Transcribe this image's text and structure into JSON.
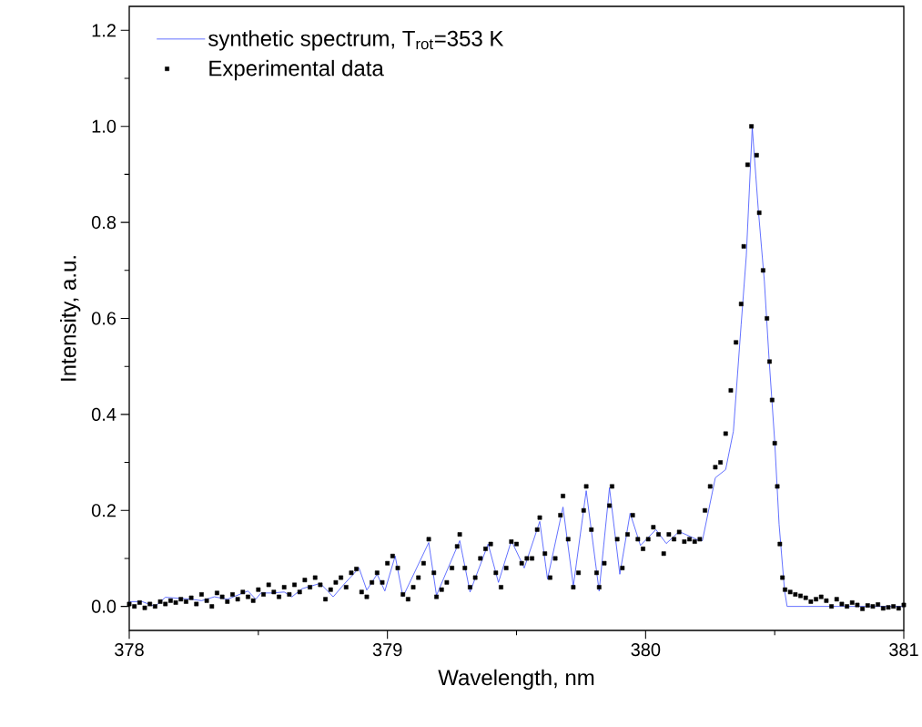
{
  "chart_data": {
    "type": "line",
    "xlabel": "Wavelength, nm",
    "ylabel": "Intensity, a.u.",
    "xlim": [
      378,
      381
    ],
    "ylim": [
      -0.05,
      1.25
    ],
    "xticks": [
      378,
      379,
      380,
      381
    ],
    "yticks": [
      {
        "value": 0,
        "label": "0.0"
      },
      {
        "value": 0.2,
        "label": "0.2"
      },
      {
        "value": 0.4,
        "label": "0.4"
      },
      {
        "value": 0.6,
        "label": "0.6"
      },
      {
        "value": 0.8,
        "label": "0.8"
      },
      {
        "value": 1.0,
        "label": "1.0"
      },
      {
        "value": 1.2,
        "label": "1.2"
      }
    ],
    "grid": false,
    "legend": "top left",
    "series": [
      {
        "name": "synthetic spectrum, T$_{rot}$=353 K",
        "color": "#3b4cff",
        "marker": "none",
        "line_style": "solid",
        "x": [
          378.0,
          378.05,
          378.1,
          378.14,
          378.24,
          378.28,
          378.33,
          378.38,
          378.46,
          378.49,
          378.51,
          378.55,
          378.6,
          378.63,
          378.67,
          378.74,
          378.79,
          378.83,
          378.89,
          378.92,
          378.96,
          378.99,
          379.03,
          379.06,
          379.16,
          379.19,
          379.28,
          379.32,
          379.39,
          379.43,
          379.48,
          379.53,
          379.59,
          379.62,
          379.68,
          379.72,
          379.77,
          379.82,
          379.86,
          379.9,
          379.94,
          379.98,
          380.04,
          380.08,
          380.13,
          380.2,
          380.22,
          380.27,
          380.31,
          380.34,
          380.37,
          380.39,
          380.413,
          380.436,
          380.46,
          380.478,
          380.5,
          380.517,
          380.538,
          380.548,
          380.6,
          380.8,
          381.0
        ],
        "values": [
          0.01,
          0.01,
          0.0,
          0.019,
          0.015,
          0.012,
          0.02,
          0.015,
          0.032,
          0.015,
          0.028,
          0.028,
          0.03,
          0.02,
          0.037,
          0.048,
          0.02,
          0.045,
          0.08,
          0.034,
          0.067,
          0.032,
          0.105,
          0.02,
          0.133,
          0.023,
          0.137,
          0.03,
          0.13,
          0.05,
          0.137,
          0.08,
          0.177,
          0.057,
          0.207,
          0.042,
          0.241,
          0.032,
          0.247,
          0.067,
          0.194,
          0.127,
          0.16,
          0.131,
          0.156,
          0.139,
          0.137,
          0.268,
          0.285,
          0.365,
          0.587,
          0.73,
          0.998,
          0.83,
          0.677,
          0.517,
          0.344,
          0.171,
          0.034,
          0.0,
          0.0,
          0.0,
          0.0
        ]
      },
      {
        "name": "Experimental data",
        "type": "scatter",
        "color": "#000000",
        "marker": "square",
        "x": [
          378.0,
          378.02,
          378.04,
          378.06,
          378.08,
          378.1,
          378.12,
          378.14,
          378.16,
          378.18,
          378.2,
          378.22,
          378.24,
          378.26,
          378.28,
          378.3,
          378.32,
          378.34,
          378.36,
          378.38,
          378.4,
          378.42,
          378.44,
          378.46,
          378.48,
          378.5,
          378.52,
          378.54,
          378.56,
          378.58,
          378.6,
          378.62,
          378.64,
          378.66,
          378.68,
          378.7,
          378.72,
          378.74,
          378.76,
          378.78,
          378.8,
          378.82,
          378.84,
          378.86,
          378.88,
          378.9,
          378.92,
          378.94,
          378.96,
          378.98,
          379.0,
          379.02,
          379.04,
          379.06,
          379.08,
          379.1,
          379.12,
          379.14,
          379.16,
          379.18,
          379.19,
          379.21,
          379.23,
          379.25,
          379.27,
          379.28,
          379.3,
          379.32,
          379.34,
          379.36,
          379.38,
          379.4,
          379.42,
          379.44,
          379.46,
          379.48,
          379.5,
          379.52,
          379.54,
          379.56,
          379.58,
          379.59,
          379.61,
          379.63,
          379.65,
          379.67,
          379.68,
          379.7,
          379.72,
          379.74,
          379.76,
          379.77,
          379.79,
          379.81,
          379.82,
          379.84,
          379.86,
          379.87,
          379.89,
          379.91,
          379.93,
          379.95,
          379.97,
          379.99,
          380.01,
          380.03,
          380.05,
          380.07,
          380.09,
          380.11,
          380.13,
          380.15,
          380.17,
          380.19,
          380.21,
          380.23,
          380.25,
          380.27,
          380.29,
          380.31,
          380.33,
          380.35,
          380.37,
          380.38,
          380.395,
          380.41,
          380.43,
          380.44,
          380.455,
          380.47,
          380.48,
          380.49,
          380.5,
          380.51,
          380.52,
          380.53,
          380.54,
          380.56,
          380.58,
          380.6,
          380.62,
          380.64,
          380.66,
          380.68,
          380.7,
          380.72,
          380.74,
          380.76,
          380.78,
          380.8,
          380.82,
          380.84,
          380.86,
          380.88,
          380.9,
          380.92,
          380.94,
          380.96,
          380.98,
          381.0
        ],
        "values": [
          0.005,
          0.0,
          0.008,
          -0.003,
          0.005,
          0.0,
          0.01,
          0.005,
          0.012,
          0.008,
          0.015,
          0.01,
          0.018,
          0.005,
          0.025,
          0.012,
          0.0,
          0.028,
          0.02,
          0.01,
          0.025,
          0.015,
          0.03,
          0.02,
          0.012,
          0.035,
          0.025,
          0.045,
          0.03,
          0.02,
          0.04,
          0.025,
          0.045,
          0.03,
          0.055,
          0.04,
          0.06,
          0.045,
          0.015,
          0.035,
          0.05,
          0.06,
          0.04,
          0.07,
          0.078,
          0.03,
          0.02,
          0.05,
          0.07,
          0.05,
          0.09,
          0.105,
          0.08,
          0.025,
          0.015,
          0.04,
          0.06,
          0.09,
          0.14,
          0.07,
          0.02,
          0.035,
          0.05,
          0.08,
          0.125,
          0.15,
          0.08,
          0.04,
          0.06,
          0.1,
          0.12,
          0.13,
          0.07,
          0.04,
          0.08,
          0.135,
          0.13,
          0.09,
          0.1,
          0.1,
          0.16,
          0.185,
          0.11,
          0.06,
          0.1,
          0.19,
          0.23,
          0.14,
          0.04,
          0.07,
          0.2,
          0.25,
          0.16,
          0.07,
          0.04,
          0.09,
          0.21,
          0.25,
          0.14,
          0.08,
          0.15,
          0.19,
          0.14,
          0.12,
          0.14,
          0.165,
          0.15,
          0.11,
          0.15,
          0.14,
          0.155,
          0.135,
          0.14,
          0.135,
          0.14,
          0.2,
          0.25,
          0.29,
          0.3,
          0.36,
          0.45,
          0.55,
          0.63,
          0.75,
          0.92,
          1.0,
          0.94,
          0.82,
          0.7,
          0.6,
          0.51,
          0.43,
          0.34,
          0.25,
          0.13,
          0.06,
          0.035,
          0.03,
          0.025,
          0.022,
          0.018,
          0.01,
          0.015,
          0.02,
          0.012,
          0.0,
          0.015,
          0.005,
          0.0,
          0.008,
          0.003,
          -0.005,
          0.002,
          0.0,
          0.004,
          -0.004,
          -0.002,
          0.0,
          -0.004,
          0.003
        ]
      }
    ]
  }
}
